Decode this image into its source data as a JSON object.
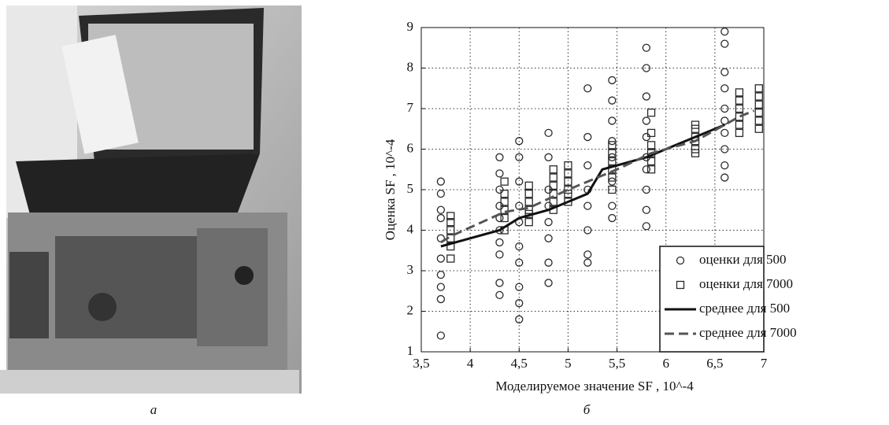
{
  "figure": {
    "panel_labels": [
      "а",
      "б"
    ]
  },
  "chart_data": {
    "type": "scatter",
    "xlabel": "Моделируемое значение SF , 10^-4",
    "ylabel": "Оценка SF , 10^-4",
    "xlim": [
      3.5,
      7
    ],
    "ylim": [
      1,
      9
    ],
    "xticks": [
      {
        "value": 3.5,
        "label": "3,5"
      },
      4,
      {
        "value": 4.5,
        "label": "4,5"
      },
      5,
      {
        "value": 5.5,
        "label": "5,5"
      },
      6,
      {
        "value": 6.5,
        "label": "6,5"
      },
      7
    ],
    "yticks": [
      1,
      2,
      3,
      4,
      5,
      6,
      7,
      8,
      9
    ],
    "grid": true,
    "legend": "lower right",
    "series": [
      {
        "name": "оценки для 500",
        "kind": "scatter",
        "marker": "circle",
        "color": "#2a2a2a",
        "x": [
          3.7,
          3.7,
          3.7,
          3.7,
          3.7,
          3.7,
          3.7,
          3.7,
          3.7,
          3.7,
          4.3,
          4.3,
          4.3,
          4.3,
          4.3,
          4.3,
          4.3,
          4.3,
          4.3,
          4.3,
          4.5,
          4.5,
          4.5,
          4.5,
          4.5,
          4.5,
          4.5,
          4.5,
          4.5,
          4.5,
          4.8,
          4.8,
          4.8,
          4.8,
          4.8,
          4.8,
          4.8,
          4.8,
          5.2,
          5.2,
          5.2,
          5.2,
          5.2,
          5.2,
          5.2,
          5.2,
          5.45,
          5.45,
          5.45,
          5.45,
          5.45,
          5.45,
          5.45,
          5.45,
          5.8,
          5.8,
          5.8,
          5.8,
          5.8,
          5.8,
          5.8,
          5.8,
          5.8,
          5.8,
          6.6,
          6.6,
          6.6,
          6.6,
          6.6,
          6.6,
          6.6,
          6.6,
          6.6,
          6.6
        ],
        "values": [
          1.4,
          2.3,
          2.6,
          2.9,
          3.3,
          3.8,
          4.3,
          4.5,
          4.9,
          5.2,
          2.4,
          2.7,
          3.4,
          3.7,
          4.0,
          4.3,
          4.6,
          5.0,
          5.4,
          5.8,
          1.8,
          2.2,
          2.6,
          3.2,
          3.6,
          4.2,
          4.6,
          5.2,
          5.8,
          6.2,
          2.7,
          3.2,
          3.8,
          4.2,
          4.6,
          5.0,
          5.8,
          6.4,
          3.2,
          3.4,
          4.0,
          4.6,
          5.0,
          5.6,
          6.3,
          7.5,
          4.3,
          4.6,
          5.2,
          5.8,
          6.2,
          6.7,
          7.2,
          7.7,
          4.1,
          4.5,
          5.0,
          5.5,
          5.8,
          6.3,
          6.7,
          7.3,
          8.0,
          8.5,
          5.3,
          5.6,
          6.0,
          6.4,
          6.7,
          7.0,
          7.5,
          7.9,
          8.6,
          8.9
        ]
      },
      {
        "name": "оценки для 7000",
        "kind": "scatter",
        "marker": "square",
        "color": "#2a2a2a",
        "x": [
          3.8,
          3.8,
          3.8,
          3.8,
          3.8,
          3.8,
          4.35,
          4.35,
          4.35,
          4.35,
          4.35,
          4.35,
          4.6,
          4.6,
          4.6,
          4.6,
          4.6,
          4.6,
          4.85,
          4.85,
          4.85,
          4.85,
          4.85,
          4.85,
          5.0,
          5.0,
          5.0,
          5.0,
          5.0,
          5.0,
          5.45,
          5.45,
          5.45,
          5.45,
          5.45,
          5.45,
          5.85,
          5.85,
          5.85,
          5.85,
          5.85,
          5.85,
          6.3,
          6.3,
          6.3,
          6.3,
          6.3,
          6.3,
          6.75,
          6.75,
          6.75,
          6.75,
          6.75,
          6.75,
          6.95,
          6.95,
          6.95,
          6.95,
          6.95,
          6.95
        ],
        "values": [
          3.3,
          3.6,
          3.8,
          4.0,
          4.2,
          4.35,
          4.0,
          4.3,
          4.5,
          4.7,
          4.9,
          5.2,
          4.2,
          4.4,
          4.5,
          4.7,
          4.9,
          5.1,
          4.5,
          4.7,
          4.9,
          5.1,
          5.3,
          5.5,
          4.7,
          4.9,
          5.0,
          5.2,
          5.4,
          5.6,
          5.0,
          5.3,
          5.5,
          5.7,
          5.9,
          6.1,
          5.5,
          5.7,
          5.9,
          6.1,
          6.4,
          6.9,
          5.9,
          6.0,
          6.2,
          6.3,
          6.5,
          6.6,
          6.4,
          6.6,
          6.8,
          7.0,
          7.2,
          7.4,
          6.5,
          6.7,
          6.9,
          7.1,
          7.3,
          7.5
        ]
      },
      {
        "name": "среднее для 500",
        "kind": "line",
        "dash": "solid",
        "color": "#111111",
        "x": [
          3.7,
          4.3,
          4.5,
          4.8,
          5.2,
          5.35,
          5.8,
          6.6
        ],
        "values": [
          3.6,
          4.0,
          4.3,
          4.5,
          4.9,
          5.5,
          5.8,
          6.6
        ]
      },
      {
        "name": "среднее для 7000",
        "kind": "line",
        "dash": "dashed",
        "color": "#555555",
        "x": [
          3.7,
          3.8,
          4.35,
          4.6,
          5.0,
          5.5,
          5.85,
          6.3,
          6.75,
          6.9
        ],
        "values": [
          3.7,
          3.85,
          4.45,
          4.55,
          5.0,
          5.5,
          5.9,
          6.2,
          6.8,
          6.95
        ]
      }
    ]
  }
}
